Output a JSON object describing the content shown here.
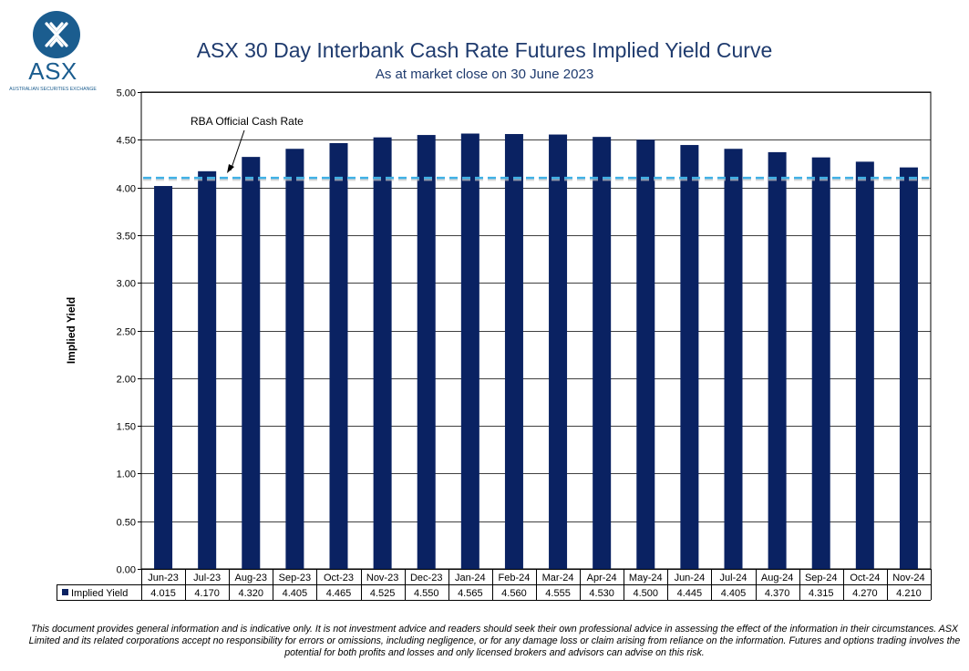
{
  "logo": {
    "name": "ASX",
    "tagline": "AUSTRALIAN SECURITIES EXCHANGE",
    "color": "#1b5d8f"
  },
  "header": {
    "title": "ASX 30 Day Interbank Cash Rate Futures Implied Yield Curve",
    "subtitle": "As at market close on 30 June 2023"
  },
  "chart_data": {
    "type": "bar",
    "title": "ASX 30 Day Interbank Cash Rate Futures Implied Yield Curve",
    "subtitle": "As at market close on 30 June 2023",
    "ylabel": "Implied Yield",
    "xlabel": "",
    "ylim": [
      0,
      5
    ],
    "yticks": [
      "0.00",
      "0.50",
      "1.00",
      "1.50",
      "2.00",
      "2.50",
      "3.00",
      "3.50",
      "4.00",
      "4.50",
      "5.00"
    ],
    "grid": true,
    "categories": [
      "Jun-23",
      "Jul-23",
      "Aug-23",
      "Sep-23",
      "Oct-23",
      "Nov-23",
      "Dec-23",
      "Jan-24",
      "Feb-24",
      "Mar-24",
      "Apr-24",
      "May-24",
      "Jun-24",
      "Jul-24",
      "Aug-24",
      "Sep-24",
      "Oct-24",
      "Nov-24"
    ],
    "series": [
      {
        "name": "Implied Yield",
        "values": [
          4.015,
          4.17,
          4.32,
          4.405,
          4.465,
          4.525,
          4.55,
          4.565,
          4.56,
          4.555,
          4.53,
          4.5,
          4.445,
          4.405,
          4.37,
          4.315,
          4.27,
          4.21
        ],
        "labels": [
          "4.015",
          "4.170",
          "4.320",
          "4.405",
          "4.465",
          "4.525",
          "4.550",
          "4.565",
          "4.560",
          "4.555",
          "4.530",
          "4.500",
          "4.445",
          "4.405",
          "4.370",
          "4.315",
          "4.270",
          "4.210"
        ],
        "color": "#0a2262"
      }
    ],
    "reference_line": {
      "label": "RBA Official Cash Rate",
      "value": 4.1,
      "color": "#3fb0e5"
    }
  },
  "disclaimer": "This document provides general information and is indicative only. It is not investment advice and readers should seek their own professional advice in assessing the effect of the information in their circumstances. ASX Limited and its related corporations accept no responsibility for errors or omissions, including negligence, or for any damage loss or claim arising from reliance on the information. Futures and options trading involves the potential for both profits and losses and only licensed brokers and advisors can advise on this risk."
}
